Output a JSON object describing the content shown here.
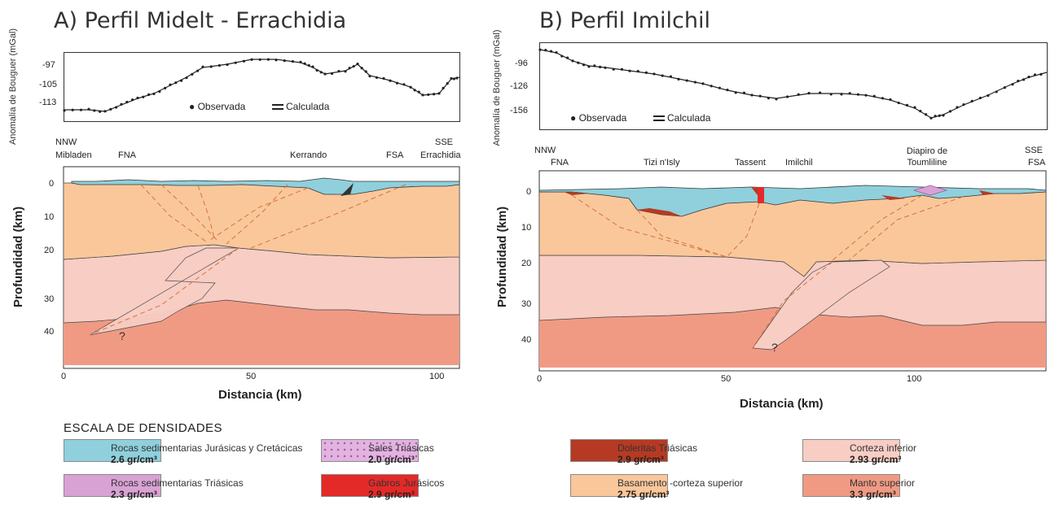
{
  "panel_a": {
    "title": "A) Perfil Midelt - Errachidia",
    "gravity_ylabel": "Anomalía de Bouguer (mGal)",
    "gravity_ticks": [
      "-97",
      "-105",
      "-113"
    ],
    "legend_observed": "Observada",
    "legend_calculated": "Calculada",
    "dir_left": "NNW",
    "dir_right": "SSE",
    "locations": [
      "Mibladen",
      "FNA",
      "Kerrando",
      "FSA",
      "Errachidia"
    ],
    "depth_label": "Profundidad (km)",
    "depth_ticks": [
      "0",
      "10",
      "20",
      "30",
      "40"
    ],
    "x_ticks": [
      "0",
      "50",
      "100"
    ],
    "x_label": "Distancia (km)",
    "question": "?"
  },
  "panel_b": {
    "title": "B) Perfil Imilchil",
    "gravity_ylabel": "Anomalía de Bouguer (mGal)",
    "gravity_ticks": [
      "-96",
      "-126",
      "-156"
    ],
    "legend_observed": "Observada",
    "legend_calculated": "Calculada",
    "dir_left": "NNW",
    "dir_right": "SSE",
    "locations": [
      "FNA",
      "Tizi n'Isly",
      "Tassent",
      "Imilchil",
      "Diapiro de Toumliline",
      "FSA"
    ],
    "depth_label": "Profundidad (km)",
    "depth_ticks": [
      "0",
      "10",
      "20",
      "30",
      "40"
    ],
    "x_ticks": [
      "0",
      "50",
      "100"
    ],
    "x_label": "Distancia (km)",
    "question": "?"
  },
  "legend": {
    "title": "ESCALA DE DENSIDADES",
    "items": [
      {
        "name": "Rocas sedimentarias Jurásicas y Cretácicas",
        "value": "2.6 gr/cm³",
        "color": "#8fd0dc",
        "pattern": false
      },
      {
        "name": "Rocas sedimentarias Triásicas",
        "value": "2.3 gr/cm³",
        "color": "#d9a2d4",
        "pattern": false
      },
      {
        "name": "Sales Triásicas",
        "value": "2.0 gr/cm³",
        "color": "#e3b3e0",
        "pattern": true
      },
      {
        "name": "Gabros Jurásicos",
        "value": "2.9 gr/cm³",
        "color": "#e42a28",
        "pattern": false
      },
      {
        "name": "Doleritas Triásicas",
        "value": "2.9 gr/cm³",
        "color": "#b63a23",
        "pattern": false
      },
      {
        "name": "Basamento -corteza superior",
        "value": "2.75 gr/cm³",
        "color": "#fac79b",
        "pattern": false
      },
      {
        "name": "Corteza inferior",
        "value": "2.93 gr/cm³",
        "color": "#f8cdc4",
        "pattern": false
      },
      {
        "name": "Manto superior",
        "value": "3.3 gr/cm³",
        "color": "#f09a84",
        "pattern": false
      }
    ]
  }
}
